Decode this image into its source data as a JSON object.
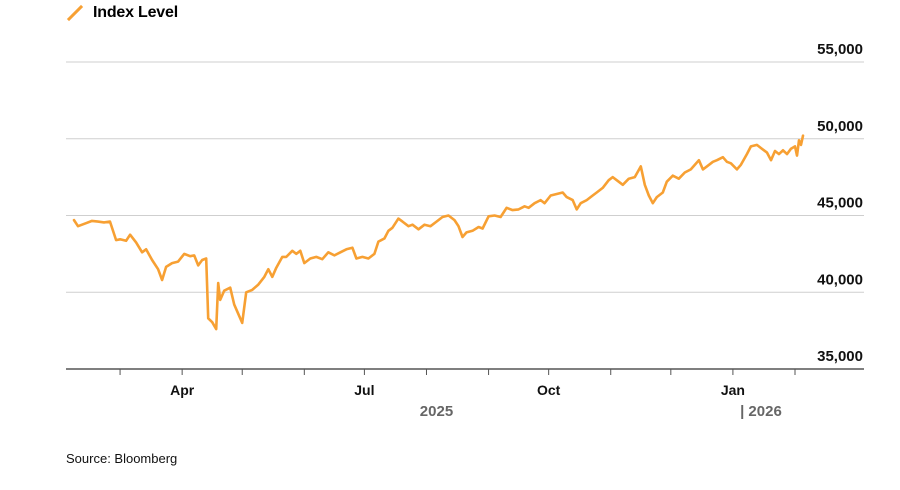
{
  "legend": {
    "label": "Index Level",
    "color": "#F7A033"
  },
  "source": "Source: Bloomberg",
  "chart_data": {
    "type": "line",
    "title": "",
    "xlabel": "",
    "ylabel": "",
    "ylim": [
      35000,
      55000
    ],
    "y_ticks": [
      {
        "value": 55000,
        "label": "55,000"
      },
      {
        "value": 50000,
        "label": "50,000"
      },
      {
        "value": 45000,
        "label": "45,000"
      },
      {
        "value": 40000,
        "label": "40,000"
      },
      {
        "value": 35000,
        "label": "35,000"
      }
    ],
    "x_range": [
      "2025-02-06",
      "2026-02-05"
    ],
    "x_ticks": [
      {
        "date": "2025-04-01",
        "label": "Apr"
      },
      {
        "date": "2025-07-01",
        "label": "Jul"
      },
      {
        "date": "2025-10-01",
        "label": "Oct"
      },
      {
        "date": "2026-01-01",
        "label": "Jan"
      }
    ],
    "x_minor_ticks": [
      "2025-03-01",
      "2025-05-01",
      "2025-06-01",
      "2025-08-01",
      "2025-09-01",
      "2025-11-01",
      "2025-12-01",
      "2026-02-01"
    ],
    "year_labels": [
      {
        "label": "2025",
        "date": "2025-08-06"
      },
      {
        "label": "| 2026",
        "date": "2026-01-15"
      }
    ],
    "grid": true,
    "legend_position": "top-left",
    "series": [
      {
        "name": "Index Level",
        "color": "#F7A033",
        "points": [
          [
            "2025-02-06",
            44700
          ],
          [
            "2025-02-08",
            44300
          ],
          [
            "2025-02-12",
            44500
          ],
          [
            "2025-02-15",
            44650
          ],
          [
            "2025-02-18",
            44600
          ],
          [
            "2025-02-21",
            44550
          ],
          [
            "2025-02-24",
            44600
          ],
          [
            "2025-02-27",
            43400
          ],
          [
            "2025-03-01",
            43450
          ],
          [
            "2025-03-04",
            43350
          ],
          [
            "2025-03-06",
            43750
          ],
          [
            "2025-03-09",
            43250
          ],
          [
            "2025-03-12",
            42600
          ],
          [
            "2025-03-14",
            42800
          ],
          [
            "2025-03-17",
            42100
          ],
          [
            "2025-03-20",
            41500
          ],
          [
            "2025-03-22",
            40800
          ],
          [
            "2025-03-24",
            41650
          ],
          [
            "2025-03-27",
            41900
          ],
          [
            "2025-03-30",
            42000
          ],
          [
            "2025-04-02",
            42500
          ],
          [
            "2025-04-05",
            42350
          ],
          [
            "2025-04-07",
            42400
          ],
          [
            "2025-04-09",
            41750
          ],
          [
            "2025-04-11",
            42100
          ],
          [
            "2025-04-13",
            42200
          ],
          [
            "2025-04-14",
            38300
          ],
          [
            "2025-04-16",
            38050
          ],
          [
            "2025-04-18",
            37600
          ],
          [
            "2025-04-19",
            40600
          ],
          [
            "2025-04-20",
            39500
          ],
          [
            "2025-04-22",
            40100
          ],
          [
            "2025-04-25",
            40300
          ],
          [
            "2025-04-27",
            39200
          ],
          [
            "2025-04-29",
            38600
          ],
          [
            "2025-05-01",
            38000
          ],
          [
            "2025-05-03",
            40000
          ],
          [
            "2025-05-06",
            40150
          ],
          [
            "2025-05-09",
            40500
          ],
          [
            "2025-05-12",
            41000
          ],
          [
            "2025-05-14",
            41500
          ],
          [
            "2025-05-16",
            41000
          ],
          [
            "2025-05-18",
            41600
          ],
          [
            "2025-05-21",
            42300
          ],
          [
            "2025-05-23",
            42300
          ],
          [
            "2025-05-26",
            42700
          ],
          [
            "2025-05-28",
            42500
          ],
          [
            "2025-05-30",
            42700
          ],
          [
            "2025-06-01",
            41900
          ],
          [
            "2025-06-04",
            42200
          ],
          [
            "2025-06-07",
            42300
          ],
          [
            "2025-06-10",
            42150
          ],
          [
            "2025-06-13",
            42600
          ],
          [
            "2025-06-16",
            42400
          ],
          [
            "2025-06-19",
            42600
          ],
          [
            "2025-06-22",
            42800
          ],
          [
            "2025-06-25",
            42900
          ],
          [
            "2025-06-27",
            42200
          ],
          [
            "2025-06-30",
            42300
          ],
          [
            "2025-07-03",
            42200
          ],
          [
            "2025-07-06",
            42500
          ],
          [
            "2025-07-08",
            43300
          ],
          [
            "2025-07-11",
            43500
          ],
          [
            "2025-07-13",
            44000
          ],
          [
            "2025-07-15",
            44200
          ],
          [
            "2025-07-18",
            44800
          ],
          [
            "2025-07-20",
            44600
          ],
          [
            "2025-07-23",
            44300
          ],
          [
            "2025-07-25",
            44400
          ],
          [
            "2025-07-28",
            44100
          ],
          [
            "2025-07-31",
            44400
          ],
          [
            "2025-08-03",
            44300
          ],
          [
            "2025-08-06",
            44600
          ],
          [
            "2025-08-09",
            44900
          ],
          [
            "2025-08-12",
            45000
          ],
          [
            "2025-08-15",
            44700
          ],
          [
            "2025-08-17",
            44300
          ],
          [
            "2025-08-19",
            43600
          ],
          [
            "2025-08-21",
            43900
          ],
          [
            "2025-08-24",
            44000
          ],
          [
            "2025-08-27",
            44250
          ],
          [
            "2025-08-29",
            44150
          ],
          [
            "2025-09-01",
            44950
          ],
          [
            "2025-09-04",
            45000
          ],
          [
            "2025-09-07",
            44900
          ],
          [
            "2025-09-10",
            45500
          ],
          [
            "2025-09-13",
            45350
          ],
          [
            "2025-09-16",
            45400
          ],
          [
            "2025-09-19",
            45600
          ],
          [
            "2025-09-21",
            45500
          ],
          [
            "2025-09-24",
            45800
          ],
          [
            "2025-09-27",
            46000
          ],
          [
            "2025-09-29",
            45800
          ],
          [
            "2025-10-02",
            46300
          ],
          [
            "2025-10-05",
            46400
          ],
          [
            "2025-10-08",
            46500
          ],
          [
            "2025-10-10",
            46200
          ],
          [
            "2025-10-13",
            46000
          ],
          [
            "2025-10-15",
            45400
          ],
          [
            "2025-10-17",
            45800
          ],
          [
            "2025-10-20",
            46000
          ],
          [
            "2025-10-23",
            46300
          ],
          [
            "2025-10-25",
            46500
          ],
          [
            "2025-10-28",
            46800
          ],
          [
            "2025-10-31",
            47300
          ],
          [
            "2025-11-02",
            47500
          ],
          [
            "2025-11-05",
            47200
          ],
          [
            "2025-11-07",
            47000
          ],
          [
            "2025-11-10",
            47400
          ],
          [
            "2025-11-13",
            47500
          ],
          [
            "2025-11-16",
            48200
          ],
          [
            "2025-11-18",
            47000
          ],
          [
            "2025-11-20",
            46300
          ],
          [
            "2025-11-22",
            45800
          ],
          [
            "2025-11-24",
            46200
          ],
          [
            "2025-11-27",
            46500
          ],
          [
            "2025-11-29",
            47200
          ],
          [
            "2025-12-02",
            47600
          ],
          [
            "2025-12-05",
            47400
          ],
          [
            "2025-12-08",
            47800
          ],
          [
            "2025-12-11",
            48000
          ],
          [
            "2025-12-13",
            48300
          ],
          [
            "2025-12-15",
            48600
          ],
          [
            "2025-12-17",
            48000
          ],
          [
            "2025-12-19",
            48200
          ],
          [
            "2025-12-22",
            48500
          ],
          [
            "2025-12-24",
            48600
          ],
          [
            "2025-12-27",
            48800
          ],
          [
            "2025-12-29",
            48500
          ],
          [
            "2025-12-31",
            48400
          ],
          [
            "2026-01-03",
            48000
          ],
          [
            "2026-01-05",
            48300
          ],
          [
            "2026-01-08",
            49000
          ],
          [
            "2026-01-10",
            49500
          ],
          [
            "2026-01-13",
            49600
          ],
          [
            "2026-01-15",
            49400
          ],
          [
            "2026-01-18",
            49100
          ],
          [
            "2026-01-20",
            48600
          ],
          [
            "2026-01-22",
            49200
          ],
          [
            "2026-01-24",
            49000
          ],
          [
            "2026-01-26",
            49250
          ],
          [
            "2026-01-28",
            49000
          ],
          [
            "2026-01-30",
            49350
          ],
          [
            "2026-02-01",
            49500
          ],
          [
            "2026-02-02",
            48900
          ],
          [
            "2026-02-03",
            49900
          ],
          [
            "2026-02-04",
            49600
          ],
          [
            "2026-02-05",
            50200
          ]
        ]
      }
    ]
  }
}
